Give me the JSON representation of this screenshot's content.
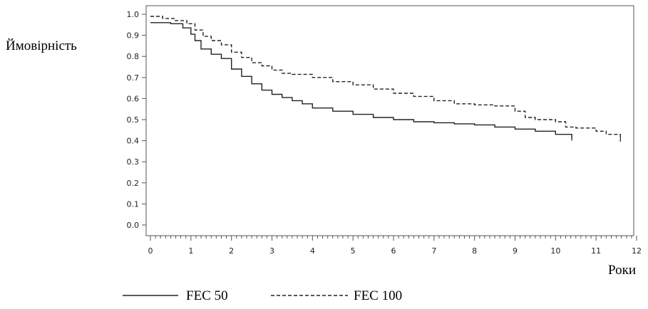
{
  "chart_data": {
    "type": "line",
    "ylabel": "Ймовірність",
    "xlabel": "Роки",
    "xlim": [
      0,
      12
    ],
    "ylim": [
      0,
      1.0
    ],
    "x_ticks": [
      "0",
      "1",
      "2",
      "3",
      "4",
      "5",
      "6",
      "7",
      "8",
      "9",
      "10",
      "11",
      "12"
    ],
    "y_ticks": [
      "0.0",
      "0.1",
      "0.2",
      "0.3",
      "0.4",
      "0.5",
      "0.6",
      "0.7",
      "0.8",
      "0.9",
      "1.0"
    ],
    "grid": false,
    "legend_position": "bottom",
    "series": [
      {
        "name": "FEC 50",
        "line_style": "solid",
        "points": [
          [
            0,
            0.96
          ],
          [
            0.5,
            0.955
          ],
          [
            0.8,
            0.935
          ],
          [
            1,
            0.905
          ],
          [
            1.1,
            0.875
          ],
          [
            1.25,
            0.835
          ],
          [
            1.5,
            0.81
          ],
          [
            1.75,
            0.79
          ],
          [
            2,
            0.74
          ],
          [
            2.25,
            0.705
          ],
          [
            2.5,
            0.67
          ],
          [
            2.75,
            0.64
          ],
          [
            3,
            0.62
          ],
          [
            3.25,
            0.605
          ],
          [
            3.5,
            0.59
          ],
          [
            3.75,
            0.575
          ],
          [
            4,
            0.555
          ],
          [
            4.5,
            0.54
          ],
          [
            5,
            0.525
          ],
          [
            5.5,
            0.51
          ],
          [
            6,
            0.5
          ],
          [
            6.5,
            0.49
          ],
          [
            7,
            0.485
          ],
          [
            7.5,
            0.48
          ],
          [
            8,
            0.475
          ],
          [
            8.5,
            0.465
          ],
          [
            9,
            0.455
          ],
          [
            9.5,
            0.445
          ],
          [
            10,
            0.43
          ],
          [
            10.4,
            0.41
          ]
        ]
      },
      {
        "name": "FEC 100",
        "line_style": "dashed",
        "points": [
          [
            0,
            0.99
          ],
          [
            0.3,
            0.98
          ],
          [
            0.6,
            0.97
          ],
          [
            0.9,
            0.955
          ],
          [
            1.1,
            0.925
          ],
          [
            1.3,
            0.895
          ],
          [
            1.5,
            0.875
          ],
          [
            1.75,
            0.855
          ],
          [
            2,
            0.82
          ],
          [
            2.25,
            0.795
          ],
          [
            2.5,
            0.77
          ],
          [
            2.75,
            0.755
          ],
          [
            3,
            0.735
          ],
          [
            3.25,
            0.72
          ],
          [
            3.5,
            0.715
          ],
          [
            4,
            0.7
          ],
          [
            4.5,
            0.68
          ],
          [
            5,
            0.665
          ],
          [
            5.5,
            0.645
          ],
          [
            6,
            0.625
          ],
          [
            6.5,
            0.61
          ],
          [
            7,
            0.59
          ],
          [
            7.5,
            0.575
          ],
          [
            8,
            0.57
          ],
          [
            8.5,
            0.565
          ],
          [
            9,
            0.54
          ],
          [
            9.25,
            0.51
          ],
          [
            9.5,
            0.5
          ],
          [
            10,
            0.49
          ],
          [
            10.25,
            0.465
          ],
          [
            10.5,
            0.46
          ],
          [
            11,
            0.445
          ],
          [
            11.25,
            0.43
          ],
          [
            11.6,
            0.405
          ]
        ]
      }
    ]
  },
  "legend": {
    "fec50_label": "FEC 50",
    "fec100_label": "FEC 100"
  }
}
